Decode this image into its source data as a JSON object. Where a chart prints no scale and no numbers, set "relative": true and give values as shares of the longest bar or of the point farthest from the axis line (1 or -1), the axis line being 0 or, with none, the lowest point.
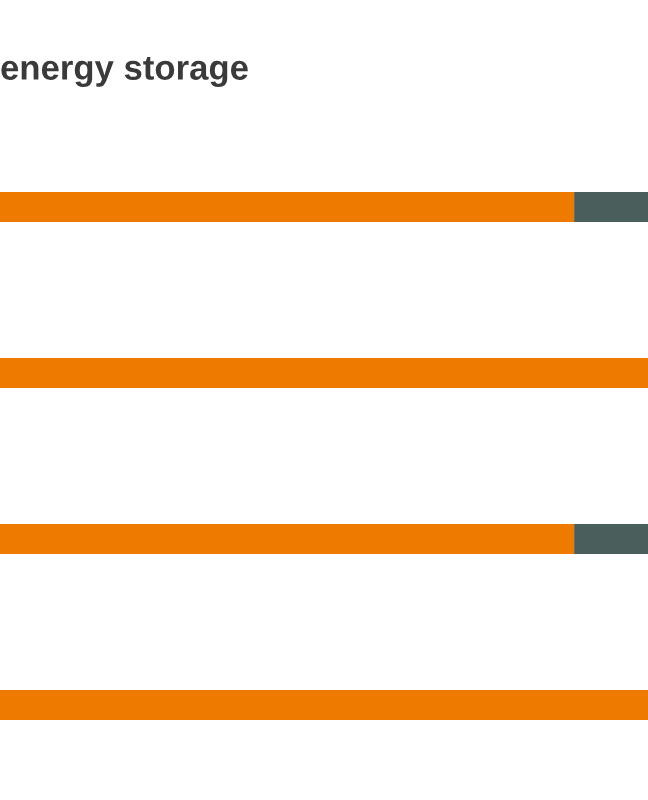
{
  "chart_data": {
    "type": "bar",
    "orientation": "horizontal",
    "stacked": true,
    "relative": true,
    "title": "energy storage",
    "categories": [
      null,
      null,
      null,
      null
    ],
    "series": [
      {
        "color": "#ee7a00",
        "values": [
          0.886,
          1,
          0.886,
          1
        ]
      },
      {
        "color": "#4a5f5b",
        "values": [
          0.114,
          0,
          0.114,
          0
        ]
      }
    ]
  }
}
